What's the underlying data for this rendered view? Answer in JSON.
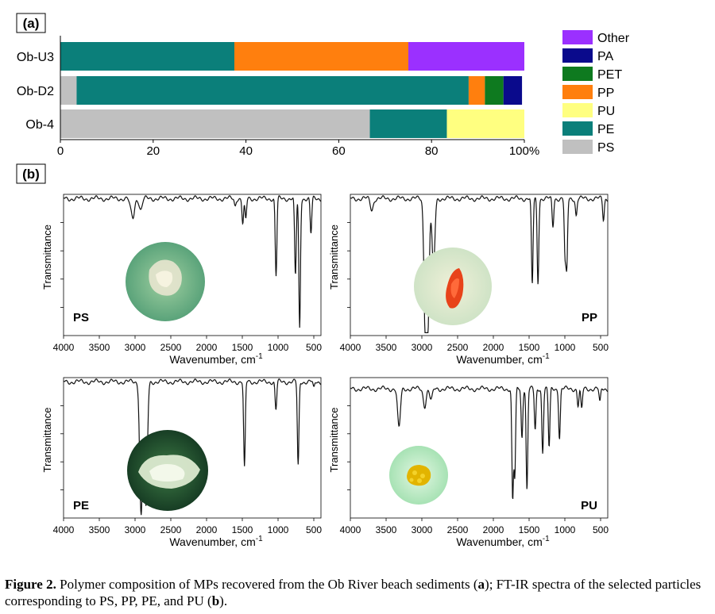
{
  "panel_a_label": "(a)",
  "panel_b_label": "(b)",
  "caption": {
    "label": "Figure 2.",
    "text_1": " Polymer composition of MPs recovered from the Ob River beach sediments (",
    "bold_a": "a",
    "text_2": "); FT-IR spectra of the selected particles corresponding to PS, PP, PE, and PU (",
    "bold_b": "b",
    "text_3": ")."
  },
  "colors": {
    "Other": "#9b30ff",
    "PA": "#0a0a8c",
    "PET": "#0e7a1f",
    "PP": "#ff7f0e",
    "PU": "#ffff80",
    "PE": "#0b7f7a",
    "PS": "#c0c0c0"
  },
  "chart_data": [
    {
      "type": "bar",
      "orientation": "horizontal-stacked",
      "categories": [
        "Ob-U3",
        "Ob-D2",
        "Ob-4"
      ],
      "xlim": [
        0,
        100
      ],
      "xticks": [
        "0",
        "20",
        "40",
        "60",
        "80",
        "100%"
      ],
      "legend": [
        "Other",
        "PA",
        "PET",
        "PP",
        "PU",
        "PE",
        "PS"
      ],
      "legend_position": "right",
      "stack_order": [
        "PS",
        "PE",
        "PU",
        "PP",
        "PET",
        "PA",
        "Other"
      ],
      "series": [
        {
          "name": "PS",
          "values": [
            0,
            3.5,
            66.7
          ]
        },
        {
          "name": "PE",
          "values": [
            37.5,
            84.5,
            16.6
          ]
        },
        {
          "name": "PU",
          "values": [
            0,
            0,
            16.7
          ]
        },
        {
          "name": "PP",
          "values": [
            37.5,
            3.5,
            0
          ]
        },
        {
          "name": "PET",
          "values": [
            0,
            4,
            0
          ]
        },
        {
          "name": "PA",
          "values": [
            0,
            4,
            0
          ]
        },
        {
          "name": "Other",
          "values": [
            25,
            0,
            0
          ]
        }
      ]
    },
    {
      "type": "line",
      "label": "PS",
      "ylabel": "Transmittance",
      "xlabel": "Wavenumber,  cm-1",
      "xlim": [
        4000,
        400
      ],
      "xticks": [
        "4000",
        "3500",
        "3000",
        "2500",
        "2000",
        "1500",
        "1000",
        "500"
      ],
      "baseline": 0.97,
      "peaks": [
        [
          3060,
          0.06
        ],
        [
          3026,
          0.12
        ],
        [
          2920,
          0.08
        ],
        [
          1601,
          0.05
        ],
        [
          1493,
          0.18
        ],
        [
          1452,
          0.15
        ],
        [
          1028,
          0.55
        ],
        [
          757,
          0.55
        ],
        [
          698,
          0.92
        ],
        [
          540,
          0.25
        ]
      ]
    },
    {
      "type": "line",
      "label": "PP",
      "ylabel": "Transmittance",
      "xlabel": "Wavenumber,  cm-1",
      "xlim": [
        4000,
        400
      ],
      "xticks": [
        "4000",
        "3500",
        "3000",
        "2500",
        "2000",
        "1500",
        "1000",
        "500"
      ],
      "baseline": 0.97,
      "peaks": [
        [
          3700,
          0.08
        ],
        [
          2950,
          0.92
        ],
        [
          2917,
          0.85
        ],
        [
          2838,
          0.5
        ],
        [
          1456,
          0.62
        ],
        [
          1376,
          0.6
        ],
        [
          1167,
          0.2
        ],
        [
          997,
          0.4
        ],
        [
          973,
          0.48
        ],
        [
          841,
          0.12
        ],
        [
          460,
          0.15
        ]
      ]
    },
    {
      "type": "line",
      "label": "PE",
      "ylabel": "Transmittance",
      "xlabel": "Wavenumber,  cm-1",
      "xlim": [
        4000,
        400
      ],
      "xticks": [
        "4000",
        "3500",
        "3000",
        "2500",
        "2000",
        "1500",
        "1000",
        "500"
      ],
      "baseline": 0.97,
      "peaks": [
        [
          2915,
          0.95
        ],
        [
          2848,
          0.9
        ],
        [
          1470,
          0.62
        ],
        [
          1030,
          0.2
        ],
        [
          719,
          0.6
        ],
        [
          500,
          0.05
        ]
      ]
    },
    {
      "type": "line",
      "label": "PU",
      "ylabel": "Transmittance",
      "xlabel": "Wavenumber,  cm-1",
      "xlim": [
        4000,
        400
      ],
      "xticks": [
        "4000",
        "3500",
        "3000",
        "2500",
        "2000",
        "1500",
        "1000",
        "500"
      ],
      "baseline": 0.92,
      "peaks": [
        [
          3320,
          0.28
        ],
        [
          2960,
          0.12
        ],
        [
          2870,
          0.08
        ],
        [
          1730,
          0.78
        ],
        [
          1700,
          0.62
        ],
        [
          1600,
          0.35
        ],
        [
          1530,
          0.72
        ],
        [
          1415,
          0.3
        ],
        [
          1310,
          0.45
        ],
        [
          1220,
          0.42
        ],
        [
          1075,
          0.35
        ],
        [
          815,
          0.12
        ],
        [
          765,
          0.15
        ],
        [
          510,
          0.1
        ]
      ]
    }
  ]
}
